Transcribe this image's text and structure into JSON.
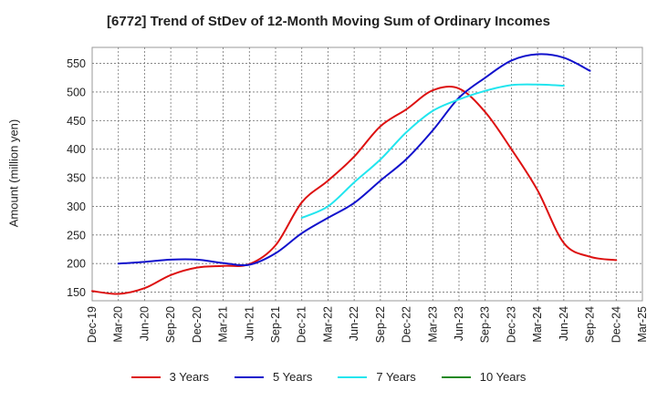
{
  "chart_data": {
    "type": "line",
    "title": "[6772]  Trend of StDev of 12-Month Moving Sum of Ordinary Incomes",
    "ylabel": "Amount (million yen)",
    "xlabel": "",
    "ylim": [
      135,
      578
    ],
    "yticks": [
      150,
      200,
      250,
      300,
      350,
      400,
      450,
      500,
      550
    ],
    "x_tick_labels": [
      "Dec-19",
      "Mar-20",
      "Jun-20",
      "Sep-20",
      "Dec-20",
      "Mar-21",
      "Jun-21",
      "Sep-21",
      "Dec-21",
      "Mar-22",
      "Jun-22",
      "Sep-22",
      "Dec-22",
      "Mar-23",
      "Jun-23",
      "Sep-23",
      "Dec-23",
      "Mar-24",
      "Jun-24",
      "Sep-24",
      "Dec-24",
      "Mar-25"
    ],
    "grid": true,
    "legend_position": "bottom",
    "series": [
      {
        "name": "3 Years",
        "color": "#dd1111",
        "start_quarter": 0,
        "values": [
          152,
          147,
          157,
          180,
          193,
          196,
          199,
          232,
          307,
          345,
          387,
          440,
          470,
          503,
          506,
          465,
          400,
          328,
          236,
          212,
          206
        ]
      },
      {
        "name": "5 Years",
        "color": "#1111cc",
        "start_quarter": 1,
        "values": [
          200,
          203,
          207,
          207,
          201,
          198,
          218,
          253,
          280,
          306,
          345,
          383,
          433,
          490,
          525,
          555,
          566,
          560,
          537
        ]
      },
      {
        "name": "7 Years",
        "color": "#22e5ee",
        "start_quarter": 8,
        "values": [
          280,
          300,
          342,
          382,
          430,
          467,
          487,
          502,
          512,
          513,
          511
        ]
      },
      {
        "name": "10 Years",
        "color": "#228822",
        "start_quarter": 0,
        "values": []
      }
    ]
  }
}
